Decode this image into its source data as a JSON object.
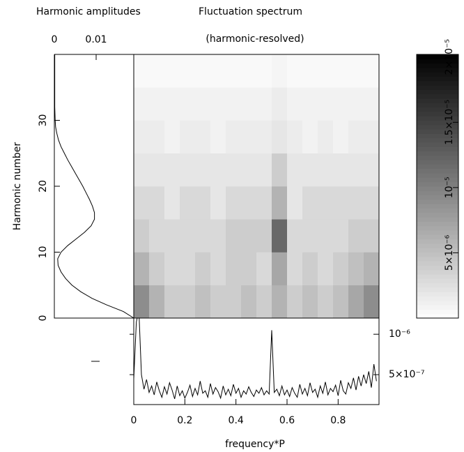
{
  "chart_data": [
    {
      "type": "profile",
      "title": "Harmonic amplitudes",
      "ylabel": "Harmonic number",
      "xlim": [
        0,
        0.019
      ],
      "xticks": [
        0,
        0.01
      ],
      "ylim": [
        0,
        40
      ],
      "yticks": [
        0,
        10,
        20,
        30
      ],
      "harmonics": [
        0,
        1,
        2,
        3,
        4,
        5,
        6,
        7,
        8,
        9,
        10,
        11,
        12,
        13,
        14,
        15,
        16,
        17,
        18,
        19,
        20,
        21,
        22,
        23,
        24,
        25,
        26,
        27,
        28,
        29,
        30,
        31,
        32,
        33,
        34,
        35,
        36,
        37,
        38,
        39,
        40
      ],
      "values": [
        0.019,
        0.0165,
        0.0125,
        0.009,
        0.0063,
        0.0042,
        0.0027,
        0.0016,
        0.0009,
        0.0008,
        0.0016,
        0.0032,
        0.0052,
        0.0072,
        0.0088,
        0.0096,
        0.0096,
        0.0091,
        0.0084,
        0.0076,
        0.0068,
        0.0059,
        0.005,
        0.0041,
        0.0032,
        0.0024,
        0.0016,
        0.001,
        0.0006,
        0.0003,
        0.0002,
        0.00015,
        0.0001,
        0.0001,
        0.0001,
        0.0001,
        0.0001,
        0.0001,
        0.0001,
        0.0001,
        0.0001
      ],
      "color": "#000000"
    },
    {
      "type": "heatmap",
      "title": "Fluctuation spectrum",
      "subtitle": "(harmonic-resolved)",
      "xlim": [
        0,
        0.96
      ],
      "ylim": [
        0,
        40
      ],
      "clim": [
        0,
        2.02e-05
      ],
      "cticks": [
        {
          "value": 5e-06,
          "label": "5×10⁻⁶"
        },
        {
          "value": 1e-05,
          "label": "10⁻⁵"
        },
        {
          "value": 1.5e-05,
          "label": "1.5×10⁻⁵"
        },
        {
          "value": 2e-05,
          "label": "2×10⁻⁵"
        }
      ],
      "z": [
        [
          9e-06,
          6e-06,
          4e-06,
          4e-06,
          5e-06,
          4e-06,
          4e-06,
          5e-06,
          4e-06,
          6e-06,
          4e-06,
          5e-06,
          4e-06,
          5e-06,
          7e-06,
          9e-06
        ],
        [
          6e-06,
          4e-06,
          3e-06,
          3e-06,
          4e-06,
          3e-06,
          4e-06,
          4e-06,
          3e-06,
          7e-06,
          3e-06,
          4e-06,
          3e-06,
          4e-06,
          5e-06,
          6e-06
        ],
        [
          4e-06,
          3e-06,
          3e-06,
          3e-06,
          3e-06,
          3e-06,
          4e-06,
          4e-06,
          4e-06,
          1.2e-05,
          3e-06,
          3e-06,
          3e-06,
          3e-06,
          4e-06,
          4e-06
        ],
        [
          3e-06,
          3e-06,
          2e-06,
          3e-06,
          3e-06,
          2e-06,
          3e-06,
          3e-06,
          3e-06,
          6e-06,
          2e-06,
          3e-06,
          3e-06,
          3e-06,
          3e-06,
          3e-06
        ],
        [
          2e-06,
          2e-06,
          2e-06,
          2e-06,
          2e-06,
          2e-06,
          2e-06,
          2e-06,
          2e-06,
          4e-06,
          2e-06,
          2e-06,
          2e-06,
          2e-06,
          2e-06,
          2e-06
        ],
        [
          1.5e-06,
          1.5e-06,
          1e-06,
          1.5e-06,
          1.5e-06,
          1e-06,
          1.5e-06,
          1.5e-06,
          1.5e-06,
          2e-06,
          1.5e-06,
          1e-06,
          1.5e-06,
          1e-06,
          1.5e-06,
          1.5e-06
        ],
        [
          1e-06,
          1e-06,
          1e-06,
          1e-06,
          1e-06,
          1e-06,
          1e-06,
          1e-06,
          1e-06,
          1.5e-06,
          1e-06,
          1e-06,
          1e-06,
          1e-06,
          1e-06,
          1e-06
        ],
        [
          5e-07,
          5e-07,
          5e-07,
          5e-07,
          5e-07,
          5e-07,
          5e-07,
          5e-07,
          5e-07,
          8e-07,
          5e-07,
          5e-07,
          5e-07,
          5e-07,
          5e-07,
          5e-07
        ]
      ]
    },
    {
      "type": "line",
      "xlabel": "frequency*P",
      "xlim": [
        0,
        0.96
      ],
      "xticks": [
        0,
        0.2,
        0.4,
        0.6,
        0.8
      ],
      "ylim": [
        1.3e-07,
        1.2e-06
      ],
      "yticks": [
        {
          "value": 5e-07,
          "label": "5×10⁻⁷"
        },
        {
          "value": 1e-06,
          "label": "10⁻⁶"
        }
      ],
      "color": "#000000",
      "x": [
        0,
        0.01,
        0.02,
        0.03,
        0.04,
        0.05,
        0.06,
        0.07,
        0.08,
        0.09,
        0.1,
        0.11,
        0.12,
        0.13,
        0.14,
        0.15,
        0.16,
        0.17,
        0.18,
        0.19,
        0.2,
        0.21,
        0.22,
        0.23,
        0.24,
        0.25,
        0.26,
        0.27,
        0.28,
        0.29,
        0.3,
        0.31,
        0.32,
        0.33,
        0.34,
        0.35,
        0.36,
        0.37,
        0.38,
        0.39,
        0.4,
        0.41,
        0.42,
        0.43,
        0.44,
        0.45,
        0.46,
        0.47,
        0.48,
        0.49,
        0.5,
        0.51,
        0.52,
        0.53,
        0.54,
        0.55,
        0.56,
        0.57,
        0.58,
        0.59,
        0.6,
        0.61,
        0.62,
        0.63,
        0.64,
        0.65,
        0.66,
        0.67,
        0.68,
        0.69,
        0.7,
        0.71,
        0.72,
        0.73,
        0.74,
        0.75,
        0.76,
        0.77,
        0.78,
        0.79,
        0.8,
        0.81,
        0.82,
        0.83,
        0.84,
        0.85,
        0.86,
        0.87,
        0.88,
        0.89,
        0.9,
        0.91,
        0.92,
        0.93,
        0.94,
        0.95
      ],
      "values": [
        4.5e-07,
        1.15e-06,
        1.3e-06,
        5e-07,
        3.2e-07,
        4.4e-07,
        2.8e-07,
        3.6e-07,
        2.5e-07,
        4.1e-07,
        3e-07,
        2.2e-07,
        3.5e-07,
        2.6e-07,
        4e-07,
        3.1e-07,
        2e-07,
        3.6e-07,
        2.4e-07,
        3e-07,
        2.1e-07,
        2.8e-07,
        3.7e-07,
        2.3e-07,
        3.3e-07,
        2.5e-07,
        4.2e-07,
        2.7e-07,
        3e-07,
        2.2e-07,
        3.9e-07,
        2.6e-07,
        3.4e-07,
        2.9e-07,
        2.1e-07,
        3.6e-07,
        2.5e-07,
        3.2e-07,
        2.4e-07,
        3.8e-07,
        2.7e-07,
        3.3e-07,
        2.2e-07,
        3e-07,
        2.6e-07,
        3.5e-07,
        2.8e-07,
        2.3e-07,
        3.1e-07,
        2.7e-07,
        3.4e-07,
        2.5e-07,
        3e-07,
        2.6e-07,
        1.05e-06,
        2.8e-07,
        3.2e-07,
        2.4e-07,
        3.6e-07,
        2.5e-07,
        3.1e-07,
        2.3e-07,
        3.4e-07,
        2.7e-07,
        2.2e-07,
        3.8e-07,
        2.6e-07,
        3.3e-07,
        2.4e-07,
        4e-07,
        2.8e-07,
        3.2e-07,
        2.2e-07,
        3.6e-07,
        2.7e-07,
        4.1e-07,
        2.5e-07,
        3.3e-07,
        2.9e-07,
        3.7e-07,
        2.4e-07,
        4.3e-07,
        3e-07,
        2.6e-07,
        4e-07,
        3.3e-07,
        4.6e-07,
        3.1e-07,
        4.8e-07,
        3.6e-07,
        5e-07,
        3.9e-07,
        5.4e-07,
        3.4e-07,
        6.3e-07,
        4.2e-07
      ]
    }
  ]
}
